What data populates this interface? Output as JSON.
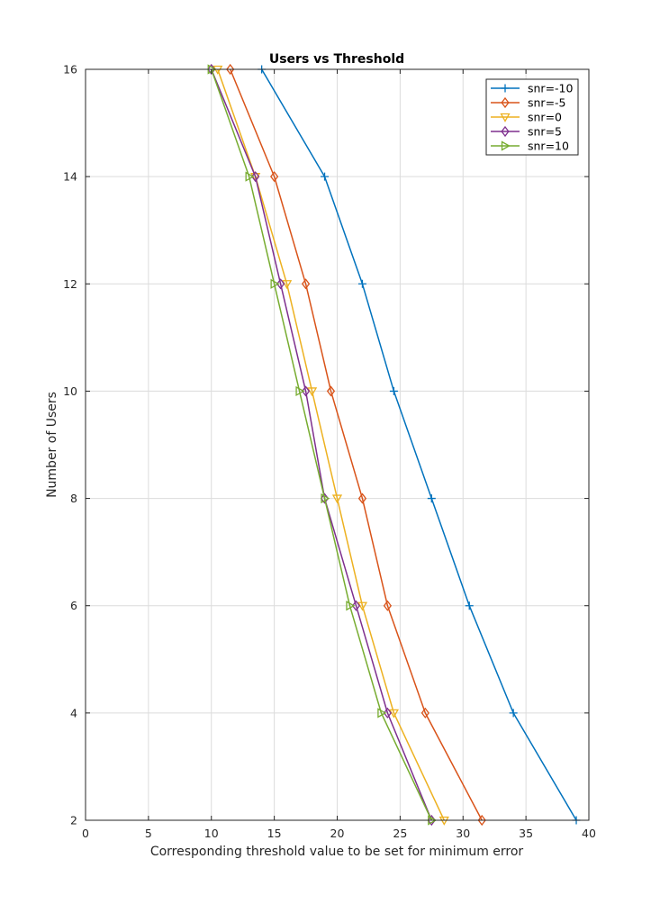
{
  "chart_data": {
    "type": "line",
    "title": "Users vs Threshold",
    "xlabel": "Corresponding threshold value to be set for minimum error",
    "ylabel": "Number of Users",
    "xlim": [
      0,
      40
    ],
    "ylim": [
      2,
      16
    ],
    "xticks": [
      0,
      5,
      10,
      15,
      20,
      25,
      30,
      35,
      40
    ],
    "yticks": [
      2,
      4,
      6,
      8,
      10,
      12,
      14,
      16
    ],
    "grid": true,
    "legend_position": "top-right",
    "series": [
      {
        "name": "snr=-10",
        "color": "#0072BD",
        "marker": "plus",
        "x": [
          39,
          34,
          30.5,
          27.5,
          24.5,
          22,
          19,
          14
        ],
        "y": [
          2,
          4,
          6,
          8,
          10,
          12,
          14,
          16
        ]
      },
      {
        "name": "snr=-5",
        "color": "#D95319",
        "marker": "diamond",
        "x": [
          31.5,
          27,
          24,
          22,
          19.5,
          17.5,
          15,
          11.5
        ],
        "y": [
          2,
          4,
          6,
          8,
          10,
          12,
          14,
          16
        ]
      },
      {
        "name": "snr=0",
        "color": "#EDB120",
        "marker": "triangle-down",
        "x": [
          28.5,
          24.5,
          22,
          20,
          18,
          16,
          13.5,
          10.5
        ],
        "y": [
          2,
          4,
          6,
          8,
          10,
          12,
          14,
          16
        ]
      },
      {
        "name": "snr=5",
        "color": "#7E2F8E",
        "marker": "diamond",
        "x": [
          27.5,
          24,
          21.5,
          19,
          17.5,
          15.5,
          13.5,
          10
        ],
        "y": [
          2,
          4,
          6,
          8,
          10,
          12,
          14,
          16
        ]
      },
      {
        "name": "snr=10",
        "color": "#77AC30",
        "marker": "triangle-right",
        "x": [
          27.5,
          23.5,
          21,
          19,
          17,
          15,
          13,
          10
        ],
        "y": [
          2,
          4,
          6,
          8,
          10,
          12,
          14,
          16
        ]
      }
    ]
  }
}
